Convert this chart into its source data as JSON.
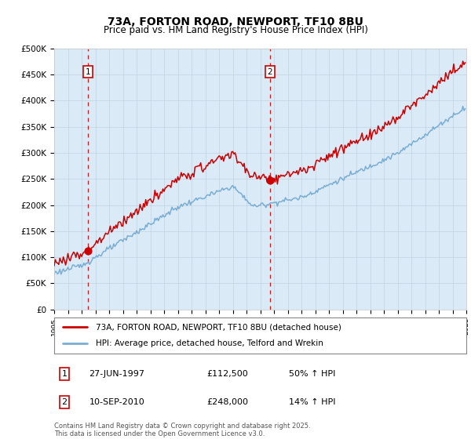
{
  "title": "73A, FORTON ROAD, NEWPORT, TF10 8BU",
  "subtitle": "Price paid vs. HM Land Registry's House Price Index (HPI)",
  "hpi_label": "HPI: Average price, detached house, Telford and Wrekin",
  "property_label": "73A, FORTON ROAD, NEWPORT, TF10 8BU (detached house)",
  "sale1_date": "27-JUN-1997",
  "sale1_price": 112500,
  "sale1_hpi": "50% ↑ HPI",
  "sale2_date": "10-SEP-2010",
  "sale2_price": 248000,
  "sale2_hpi": "14% ↑ HPI",
  "footer": "Contains HM Land Registry data © Crown copyright and database right 2025.\nThis data is licensed under the Open Government Licence v3.0.",
  "ylim": [
    0,
    500000
  ],
  "yticks": [
    0,
    50000,
    100000,
    150000,
    200000,
    250000,
    300000,
    350000,
    400000,
    450000,
    500000
  ],
  "ytick_labels": [
    "£0",
    "£50K",
    "£100K",
    "£150K",
    "£200K",
    "£250K",
    "£300K",
    "£350K",
    "£400K",
    "£450K",
    "£500K"
  ],
  "xlim_start": 1995,
  "xlim_end": 2025,
  "plot_bg": "#daeaf7",
  "red_line_color": "#cc0000",
  "blue_line_color": "#7aadd4",
  "grid_color": "#bbccdd",
  "sale_marker_color": "#cc0000",
  "vline_color": "#cc0000",
  "box_color": "#cc0000",
  "sale1_x": 1997.46,
  "sale2_x": 2010.71
}
